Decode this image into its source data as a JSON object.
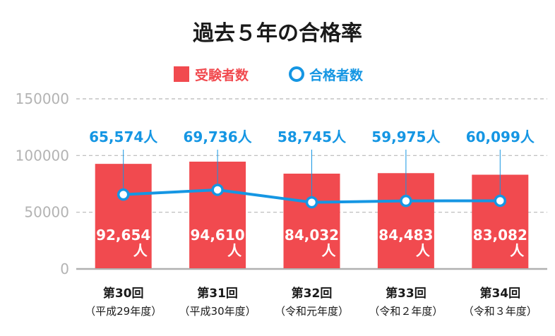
{
  "chart_data": {
    "type": "bar",
    "title": "過去５年の合格率",
    "legend": [
      {
        "label": "受験者数",
        "marker": "square",
        "color": "#f14a4f"
      },
      {
        "label": "合格者数",
        "marker": "circle",
        "color": "#1596e3"
      }
    ],
    "categories": [
      "第30回",
      "第31回",
      "第32回",
      "第33回",
      "第34回"
    ],
    "category_subtitles": [
      "（平成29年度）",
      "（平成30年度）",
      "（令和元年度）",
      "（令和２年度）",
      "（令和３年度）"
    ],
    "series": [
      {
        "name": "受験者数",
        "kind": "bar",
        "values": [
          92654,
          94610,
          84032,
          84483,
          83082
        ],
        "labels": [
          "92,654",
          "94,610",
          "84,032",
          "84,483",
          "83,082"
        ],
        "unit": "人",
        "color": "#f14a4f"
      },
      {
        "name": "合格者数",
        "kind": "line",
        "values": [
          65574,
          69736,
          58745,
          59975,
          60099
        ],
        "labels": [
          "65,574",
          "69,736",
          "58,745",
          "59,975",
          "60,099"
        ],
        "unit": "人",
        "color": "#1596e3"
      }
    ],
    "y_ticks": [
      "0",
      "50000",
      "100000",
      "150000"
    ],
    "ylim": [
      0,
      150000
    ],
    "grid": true,
    "legend_position": "top-center"
  }
}
